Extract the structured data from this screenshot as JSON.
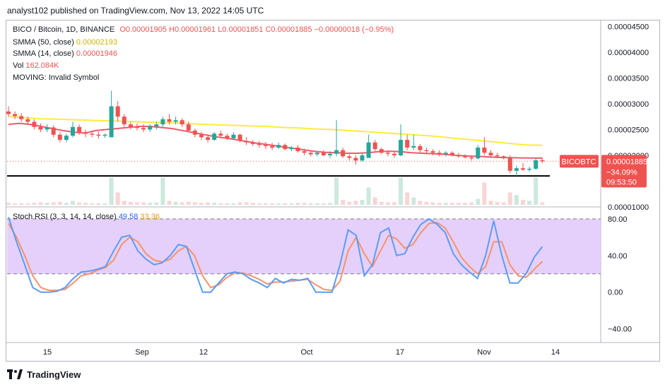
{
  "header": {
    "text": "analyst102 published on TradingView.com, Nov 13, 2022 14:05 UTC"
  },
  "legend": {
    "symbol": "BICO / Bitcoin, 1D, BINANCE",
    "open": "O0.00001905",
    "high": "H0.00001961",
    "low": "L0.00001851",
    "close": "C0.00001885",
    "change": "−0.00000018 (−0.95%)",
    "sma50_label": "SMMA (50, close)",
    "sma50_value": "0.00002193",
    "sma14_label": "SMMA (14, close)",
    "sma14_value": "0.00001946",
    "vol_label": "Vol",
    "vol_value": "162.084K",
    "moving_label": "MOVING: Invalid Symbol",
    "stoch_label": "Stoch RSI (3, 3, 14, 14, close)",
    "stoch_k": "49.58",
    "stoch_d": "33.36"
  },
  "price_axis": {
    "ticks": [
      "0.00004500",
      "0.00004000",
      "0.00003500",
      "0.00003000",
      "0.00002500",
      "0.00002000",
      "0.00001000"
    ]
  },
  "price_tags": {
    "symbol": "BICOBTC",
    "price": "0.00001885",
    "pct": "−34.09%",
    "time": "09:53:50"
  },
  "stoch_axis": {
    "ticks": [
      "80.00",
      "40.00",
      "0.00",
      "−40.00"
    ]
  },
  "time_axis": {
    "ticks": [
      "15",
      "Sep",
      "12",
      "Oct",
      "17",
      "Nov",
      "14"
    ]
  },
  "colors": {
    "up": "#26a69a",
    "down": "#ef5350",
    "sma50": "#ffeb3b",
    "sma14": "#f05a6a",
    "k": "#5b9cf6",
    "d": "#f7926a",
    "band": "#e1c8fb",
    "support": "#000000"
  },
  "chart_data": [
    {
      "type": "candlestick",
      "title": "BICO / Bitcoin, 1D, BINANCE",
      "x_start": "2022-08-08",
      "candles": [
        [
          2.85e-05,
          2.95e-05,
          2.75e-05,
          2.8e-05
        ],
        [
          2.8e-05,
          2.85e-05,
          2.7e-05,
          2.76e-05
        ],
        [
          2.76e-05,
          2.82e-05,
          2.65e-05,
          2.7e-05
        ],
        [
          2.7e-05,
          2.75e-05,
          2.6e-05,
          2.65e-05
        ],
        [
          2.65e-05,
          2.7e-05,
          2.5e-05,
          2.55e-05
        ],
        [
          2.55e-05,
          2.62e-05,
          2.45e-05,
          2.5e-05
        ],
        [
          2.5e-05,
          2.6e-05,
          2.45e-05,
          2.54e-05
        ],
        [
          2.54e-05,
          2.58e-05,
          2.35e-05,
          2.4e-05
        ],
        [
          2.4e-05,
          2.45e-05,
          2.25e-05,
          2.3e-05
        ],
        [
          2.3e-05,
          2.42e-05,
          2.25e-05,
          2.38e-05
        ],
        [
          2.38e-05,
          2.65e-05,
          2.35e-05,
          2.55e-05
        ],
        [
          2.55e-05,
          2.6e-05,
          2.4e-05,
          2.45e-05
        ],
        [
          2.45e-05,
          2.5e-05,
          2.35e-05,
          2.42e-05
        ],
        [
          2.42e-05,
          2.48e-05,
          2.35e-05,
          2.4e-05
        ],
        [
          2.4e-05,
          2.46e-05,
          2.32e-05,
          2.38e-05
        ],
        [
          2.38e-05,
          2.42e-05,
          2.34e-05,
          2.4e-05
        ],
        [
          2.35e-05,
          3.25e-05,
          2.35e-05,
          2.95e-05
        ],
        [
          2.95e-05,
          3.05e-05,
          2.65e-05,
          2.75e-05
        ],
        [
          2.75e-05,
          2.8e-05,
          2.55e-05,
          2.6e-05
        ],
        [
          2.6e-05,
          2.65e-05,
          2.5e-05,
          2.55e-05
        ],
        [
          2.55e-05,
          2.62e-05,
          2.48e-05,
          2.53e-05
        ],
        [
          2.53e-05,
          2.6e-05,
          2.45e-05,
          2.5e-05
        ],
        [
          2.5e-05,
          2.6e-05,
          2.45e-05,
          2.56e-05
        ],
        [
          2.56e-05,
          2.65e-05,
          2.5e-05,
          2.6e-05
        ],
        [
          2.6e-05,
          2.75e-05,
          2.55e-05,
          2.7e-05
        ],
        [
          2.7e-05,
          2.8e-05,
          2.6e-05,
          2.65e-05
        ],
        [
          2.65e-05,
          2.75e-05,
          2.6e-05,
          2.68e-05
        ],
        [
          2.68e-05,
          2.72e-05,
          2.55e-05,
          2.6e-05
        ],
        [
          2.6e-05,
          2.65e-05,
          2.45e-05,
          2.48e-05
        ],
        [
          2.48e-05,
          2.52e-05,
          2.35e-05,
          2.4e-05
        ],
        [
          2.4e-05,
          2.45e-05,
          2.3e-05,
          2.35e-05
        ],
        [
          2.35e-05,
          2.4e-05,
          2.25e-05,
          2.3e-05
        ],
        [
          2.3e-05,
          2.45e-05,
          2.28e-05,
          2.42e-05
        ],
        [
          2.42e-05,
          2.48e-05,
          2.35e-05,
          2.38e-05
        ],
        [
          2.38e-05,
          2.42e-05,
          2.3e-05,
          2.33e-05
        ],
        [
          2.33e-05,
          2.45e-05,
          2.3e-05,
          2.4e-05
        ],
        [
          2.4e-05,
          2.42e-05,
          2.25e-05,
          2.28e-05
        ],
        [
          2.28e-05,
          2.35e-05,
          2.2e-05,
          2.25e-05
        ],
        [
          2.25e-05,
          2.3e-05,
          2.18e-05,
          2.22e-05
        ],
        [
          2.22e-05,
          2.28e-05,
          2.15e-05,
          2.2e-05
        ],
        [
          2.2e-05,
          2.26e-05,
          2.12e-05,
          2.18e-05
        ],
        [
          2.18e-05,
          2.24e-05,
          2.1e-05,
          2.15e-05
        ],
        [
          2.15e-05,
          2.25e-05,
          2.12e-05,
          2.2e-05
        ],
        [
          2.2e-05,
          2.23e-05,
          2.1e-05,
          2.12e-05
        ],
        [
          2.12e-05,
          2.18e-05,
          2.08e-05,
          2.15e-05
        ],
        [
          2.15e-05,
          2.2e-05,
          2.05e-05,
          2.08e-05
        ],
        [
          2.08e-05,
          2.13e-05,
          2e-05,
          2.05e-05
        ],
        [
          2.05e-05,
          2.1e-05,
          1.98e-05,
          2.02e-05
        ],
        [
          2.02e-05,
          2.08e-05,
          1.98e-05,
          2.05e-05
        ],
        [
          2.05e-05,
          2.1e-05,
          1.98e-05,
          2e-05
        ],
        [
          2e-05,
          2.08e-05,
          1.95e-05,
          2.03e-05
        ],
        [
          2.03e-05,
          2.68e-05,
          1.98e-05,
          2.1e-05
        ],
        [
          2.1e-05,
          2.15e-05,
          1.95e-05,
          1.98e-05
        ],
        [
          1.98e-05,
          2.02e-05,
          1.9e-05,
          1.95e-05
        ],
        [
          1.95e-05,
          2e-05,
          1.82e-05,
          1.9e-05
        ],
        [
          1.9e-05,
          2.05e-05,
          1.88e-05,
          2e-05
        ],
        [
          1.95e-05,
          2.4e-05,
          1.95e-05,
          2.25e-05
        ],
        [
          2.25e-05,
          2.3e-05,
          2.08e-05,
          2.12e-05
        ],
        [
          2.12e-05,
          2.15e-05,
          2.02e-05,
          2.05e-05
        ],
        [
          2.05e-05,
          2.1e-05,
          1.98e-05,
          2.03e-05
        ],
        [
          2.03e-05,
          2.08e-05,
          1.96e-05,
          2e-05
        ],
        [
          2e-05,
          2.6e-05,
          1.98e-05,
          2.3e-05
        ],
        [
          2.3e-05,
          2.4e-05,
          2.1e-05,
          2.15e-05
        ],
        [
          2.15e-05,
          2.4e-05,
          2.1e-05,
          2.18e-05
        ],
        [
          2.18e-05,
          2.22e-05,
          2.05e-05,
          2.1e-05
        ],
        [
          2.1e-05,
          2.15e-05,
          2.02e-05,
          2.08e-05
        ],
        [
          2.08e-05,
          2.12e-05,
          2e-05,
          2.05e-05
        ],
        [
          2.05e-05,
          2.1e-05,
          1.98e-05,
          2.02e-05
        ],
        [
          2.02e-05,
          2.08e-05,
          1.98e-05,
          2.05e-05
        ],
        [
          2.05e-05,
          2.08e-05,
          1.98e-05,
          2e-05
        ],
        [
          2e-05,
          2.05e-05,
          1.95e-05,
          1.98e-05
        ],
        [
          1.98e-05,
          2.02e-05,
          1.94e-05,
          1.96e-05
        ],
        [
          1.96e-05,
          2e-05,
          1.9e-05,
          1.94e-05
        ],
        [
          1.94e-05,
          2.2e-05,
          1.92e-05,
          2.15e-05
        ],
        [
          2.15e-05,
          2.35e-05,
          2e-05,
          2.05e-05
        ],
        [
          2.05e-05,
          2.1e-05,
          1.95e-05,
          2e-05
        ],
        [
          2e-05,
          2.05e-05,
          1.95e-05,
          1.98e-05
        ],
        [
          1.98e-05,
          2e-05,
          1.92e-05,
          1.95e-05
        ],
        [
          1.95e-05,
          2e-05,
          1.65e-05,
          1.7e-05
        ],
        [
          1.7e-05,
          1.8e-05,
          1.6e-05,
          1.75e-05
        ],
        [
          1.75e-05,
          1.85e-05,
          1.7e-05,
          1.72e-05
        ],
        [
          1.72e-05,
          1.78e-05,
          1.68e-05,
          1.74e-05
        ],
        [
          1.74e-05,
          1.95e-05,
          1.72e-05,
          1.905e-05
        ],
        [
          1.905e-05,
          1.961e-05,
          1.851e-05,
          1.885e-05
        ]
      ],
      "volume_relative": [
        0.04,
        0.03,
        0.03,
        0.03,
        0.04,
        0.05,
        0.04,
        0.05,
        0.06,
        0.04,
        0.08,
        0.05,
        0.04,
        0.03,
        0.03,
        0.03,
        0.55,
        0.25,
        0.08,
        0.06,
        0.05,
        0.05,
        0.04,
        0.05,
        0.55,
        0.08,
        0.06,
        0.05,
        0.06,
        0.05,
        0.04,
        0.05,
        0.04,
        0.03,
        0.03,
        0.03,
        0.05,
        0.05,
        0.04,
        0.03,
        0.03,
        0.03,
        0.03,
        0.03,
        0.03,
        0.04,
        0.04,
        0.03,
        0.03,
        0.03,
        0.04,
        0.55,
        0.1,
        0.06,
        0.08,
        0.1,
        0.35,
        0.15,
        0.06,
        0.05,
        0.05,
        0.55,
        0.25,
        0.15,
        0.08,
        0.06,
        0.05,
        0.04,
        0.04,
        0.04,
        0.04,
        0.04,
        0.05,
        0.12,
        0.45,
        0.08,
        0.06,
        0.05,
        0.25,
        0.2,
        0.1,
        0.08,
        0.55,
        0.05
      ],
      "smma50": [
        2.75e-05,
        2.73e-05,
        2.71e-05,
        2.7e-05,
        2.69e-05,
        2.68e-05,
        2.67e-05,
        2.66e-05,
        2.65e-05,
        2.64e-05,
        2.63e-05,
        2.62e-05,
        2.6e-05,
        2.59e-05,
        2.58e-05,
        2.57e-05,
        2.56e-05,
        2.54e-05,
        2.53e-05,
        2.51e-05,
        2.5e-05,
        2.48e-05,
        2.46e-05,
        2.44e-05,
        2.42e-05,
        2.4e-05,
        2.38e-05,
        2.35e-05,
        2.32e-05,
        2.29e-05,
        2.26e-05,
        2.23e-05,
        2.2e-05,
        2.193e-05
      ],
      "smma14": [
        2.6e-05,
        2.62e-05,
        2.6e-05,
        2.56e-05,
        2.52e-05,
        2.48e-05,
        2.45e-05,
        2.43e-05,
        2.48e-05,
        2.5e-05,
        2.52e-05,
        2.54e-05,
        2.56e-05,
        2.56e-05,
        2.54e-05,
        2.52e-05,
        2.48e-05,
        2.44e-05,
        2.4e-05,
        2.36e-05,
        2.33e-05,
        2.3e-05,
        2.26e-05,
        2.23e-05,
        2.2e-05,
        2.17e-05,
        2.14e-05,
        2.11e-05,
        2.08e-05,
        2.06e-05,
        2.05e-05,
        2.04e-05,
        2.04e-05,
        2.05e-05,
        2.07e-05,
        2.08e-05,
        2.07e-05,
        2.05e-05,
        2.04e-05,
        2.03e-05,
        2.02e-05,
        2e-05,
        1.99e-05,
        1.98e-05,
        1.97e-05,
        1.96e-05,
        1.955e-05,
        1.95e-05,
        1.948e-05,
        1.946e-05
      ],
      "support_level": 1.6e-05,
      "ylim": [
        1e-05,
        4.6e-05
      ]
    },
    {
      "type": "line",
      "title": "Stoch RSI (3, 3, 14, 14, close)",
      "band": [
        20,
        80
      ],
      "ylim": [
        -55,
        90
      ],
      "series": [
        {
          "name": "K",
          "values": [
            82,
            55,
            30,
            5,
            0,
            0,
            1,
            5,
            15,
            22,
            23,
            25,
            28,
            45,
            60,
            62,
            45,
            36,
            30,
            32,
            40,
            52,
            50,
            25,
            0,
            0,
            10,
            20,
            22,
            20,
            14,
            10,
            5,
            15,
            10,
            14,
            13,
            15,
            0,
            0,
            0,
            30,
            68,
            62,
            18,
            30,
            65,
            70,
            40,
            42,
            60,
            74,
            80,
            74,
            65,
            42,
            30,
            22,
            15,
            40,
            78,
            40,
            10,
            10,
            20,
            38,
            49.58
          ]
        },
        {
          "name": "D",
          "values": [
            75,
            60,
            40,
            18,
            5,
            2,
            2,
            3,
            10,
            18,
            20,
            24,
            27,
            35,
            52,
            60,
            55,
            42,
            35,
            33,
            36,
            45,
            50,
            40,
            18,
            5,
            8,
            16,
            21,
            21,
            18,
            14,
            9,
            11,
            11,
            12,
            13,
            14,
            8,
            3,
            2,
            12,
            45,
            60,
            42,
            28,
            45,
            62,
            58,
            48,
            52,
            65,
            75,
            76,
            70,
            55,
            38,
            28,
            20,
            28,
            55,
            55,
            30,
            18,
            16,
            25,
            33.36
          ]
        }
      ]
    }
  ]
}
